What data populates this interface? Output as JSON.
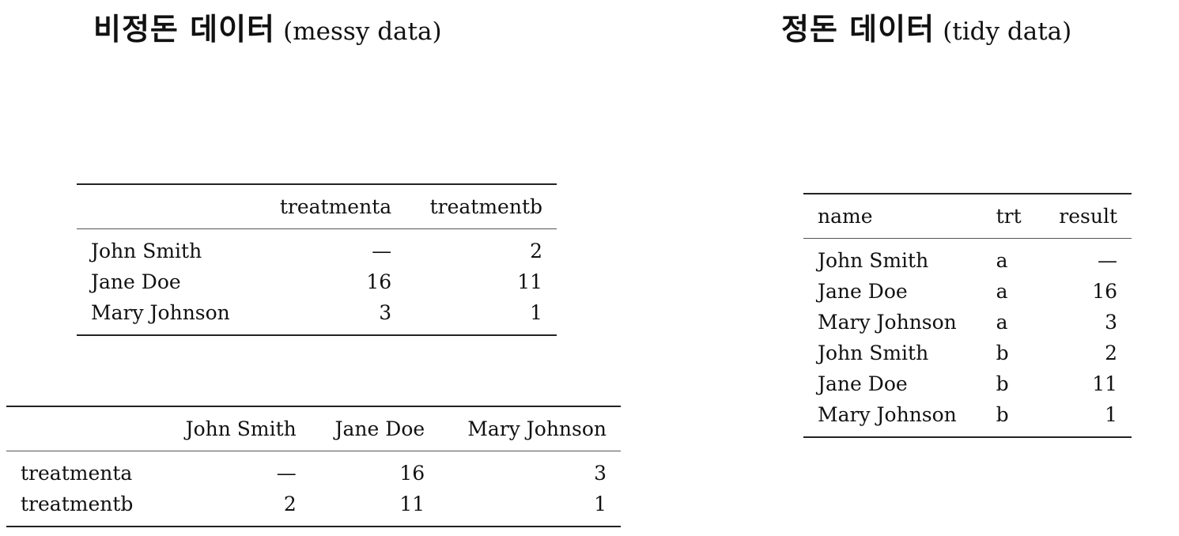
{
  "titles": {
    "messy": {
      "korean": "비정돈 데이터",
      "english": "(messy data)"
    },
    "tidy": {
      "korean": "정돈 데이터",
      "english": "(tidy data)"
    }
  },
  "messy_table_1": {
    "headers": [
      "",
      "treatmenta",
      "treatmentb"
    ],
    "rows": [
      [
        "John Smith",
        "—",
        "2"
      ],
      [
        "Jane Doe",
        "16",
        "11"
      ],
      [
        "Mary Johnson",
        "3",
        "1"
      ]
    ]
  },
  "messy_table_2": {
    "headers": [
      "",
      "John Smith",
      "Jane Doe",
      "Mary Johnson"
    ],
    "rows": [
      [
        "treatmenta",
        "—",
        "16",
        "3"
      ],
      [
        "treatmentb",
        "2",
        "11",
        "1"
      ]
    ]
  },
  "tidy_table": {
    "headers": [
      "name",
      "trt",
      "result"
    ],
    "rows": [
      [
        "John Smith",
        "a",
        "—"
      ],
      [
        "Jane Doe",
        "a",
        "16"
      ],
      [
        "Mary Johnson",
        "a",
        "3"
      ],
      [
        "John Smith",
        "b",
        "2"
      ],
      [
        "Jane Doe",
        "b",
        "11"
      ],
      [
        "Mary Johnson",
        "b",
        "1"
      ]
    ]
  }
}
